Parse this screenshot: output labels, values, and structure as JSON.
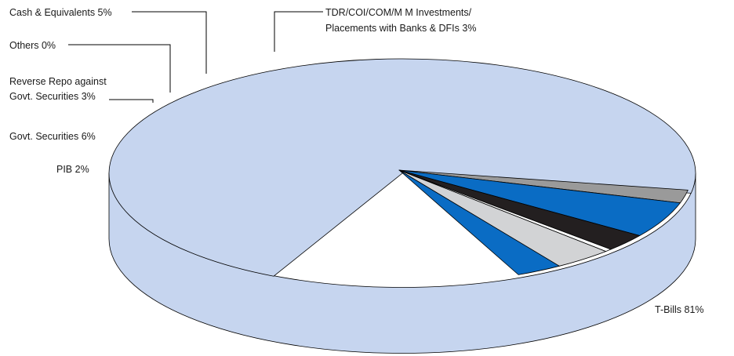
{
  "chart_data": {
    "type": "pie",
    "style": "3d-exploded-ellipse",
    "slices": [
      {
        "label": "T-Bills 81%",
        "value": 81,
        "color": "#c6d5ef"
      },
      {
        "label": "PIB 2%",
        "value": 2,
        "color": "#9a9a9a"
      },
      {
        "label": "Govt. Securities 6%",
        "value": 6,
        "color": "#0a6cc4"
      },
      {
        "label": "Reverse Repo against Govt. Securities 3%",
        "label_lines": [
          "Reverse Repo against",
          "Govt. Securities 3%"
        ],
        "value": 3,
        "color": "#231f20"
      },
      {
        "label": "Others 0%",
        "value": 0,
        "color": "#ffffff"
      },
      {
        "label": "Cash & Equivalents  5%",
        "value": 5,
        "color": "#d2d3d5"
      },
      {
        "label": "TDR/COI/COM/M M Investments/ Placements with Banks & DFIs  3%",
        "label_lines": [
          "TDR/COI/COM/M M Investments/",
          "Placements with Banks & DFIs  3%"
        ],
        "value": 3,
        "color": "#0a6cc4"
      }
    ],
    "side_color": "#c6d5ef"
  }
}
